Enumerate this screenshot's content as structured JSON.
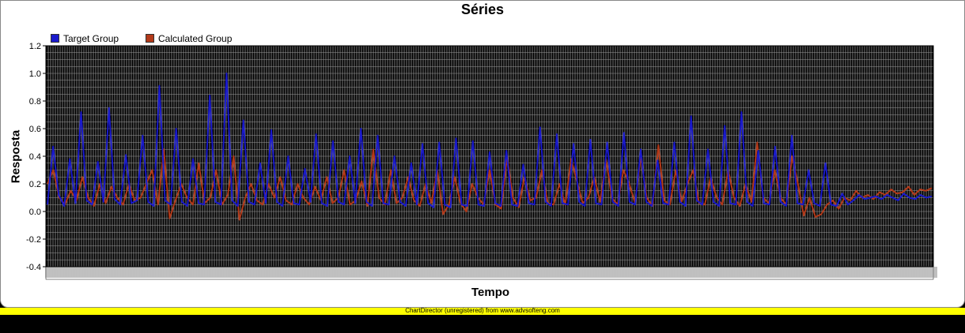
{
  "chart_data": {
    "type": "line",
    "title": "Séries",
    "xlabel": "Tempo",
    "ylabel": "Resposta",
    "ylim": [
      -0.4,
      1.2
    ],
    "yticks": [
      "1.2",
      "1.0",
      "0.8",
      "0.6",
      "0.4",
      "0.2",
      "0.0",
      "-0.2",
      "-0.4"
    ],
    "legend_placement": "top-left",
    "grid": true,
    "series": [
      {
        "name": "Target Group",
        "color": "#1a1acc",
        "values": [
          0.05,
          0.47,
          0.12,
          0.04,
          0.38,
          0.06,
          0.72,
          0.08,
          0.05,
          0.36,
          0.07,
          0.75,
          0.09,
          0.05,
          0.41,
          0.06,
          0.08,
          0.55,
          0.07,
          0.04,
          0.91,
          0.08,
          0.05,
          0.6,
          0.07,
          0.04,
          0.38,
          0.06,
          0.05,
          0.84,
          0.07,
          0.05,
          1.0,
          0.08,
          0.04,
          0.66,
          0.07,
          0.05,
          0.35,
          0.06,
          0.59,
          0.07,
          0.04,
          0.4,
          0.06,
          0.05,
          0.31,
          0.07,
          0.56,
          0.06,
          0.04,
          0.51,
          0.07,
          0.05,
          0.4,
          0.06,
          0.6,
          0.07,
          0.04,
          0.55,
          0.06,
          0.05,
          0.4,
          0.07,
          0.04,
          0.35,
          0.05,
          0.49,
          0.06,
          0.03,
          0.5,
          0.05,
          0.03,
          0.53,
          0.05,
          0.04,
          0.51,
          0.05,
          0.04,
          0.43,
          0.06,
          0.04,
          0.44,
          0.05,
          0.04,
          0.34,
          0.06,
          0.05,
          0.61,
          0.07,
          0.04,
          0.56,
          0.06,
          0.05,
          0.49,
          0.07,
          0.04,
          0.52,
          0.06,
          0.05,
          0.5,
          0.07,
          0.04,
          0.57,
          0.07,
          0.05,
          0.45,
          0.07,
          0.04,
          0.37,
          0.06,
          0.05,
          0.5,
          0.07,
          0.04,
          0.69,
          0.08,
          0.05,
          0.45,
          0.07,
          0.04,
          0.62,
          0.06,
          0.05,
          0.72,
          0.07,
          0.04,
          0.44,
          0.06,
          0.05,
          0.47,
          0.07,
          0.04,
          0.55,
          0.06,
          0.05,
          0.3,
          0.06,
          0.04,
          0.35,
          0.05,
          0.04,
          0.13,
          0.05,
          0.08,
          0.12,
          0.09,
          0.1,
          0.11,
          0.09,
          0.12,
          0.1,
          0.08,
          0.13,
          0.1,
          0.09,
          0.12,
          0.1,
          0.11
        ]
      },
      {
        "name": "Calculated Group",
        "color": "#b33a1a",
        "values": [
          0.2,
          0.3,
          0.1,
          0.05,
          0.15,
          0.08,
          0.25,
          0.1,
          0.04,
          0.2,
          0.06,
          0.18,
          0.1,
          0.05,
          0.2,
          0.08,
          0.1,
          0.2,
          0.3,
          0.05,
          0.45,
          -0.05,
          0.08,
          0.2,
          0.1,
          0.05,
          0.35,
          0.06,
          0.1,
          0.3,
          0.05,
          0.12,
          0.4,
          -0.06,
          0.1,
          0.2,
          0.08,
          0.05,
          0.2,
          0.1,
          0.25,
          0.08,
          0.05,
          0.2,
          0.1,
          0.05,
          0.18,
          0.08,
          0.25,
          0.06,
          0.1,
          0.3,
          0.05,
          0.08,
          0.22,
          0.04,
          0.45,
          0.1,
          0.05,
          0.3,
          0.06,
          0.1,
          0.25,
          0.08,
          0.04,
          0.2,
          0.06,
          0.3,
          -0.02,
          0.05,
          0.25,
          0.06,
          0.0,
          0.2,
          0.1,
          0.05,
          0.3,
          0.05,
          0.02,
          0.4,
          0.1,
          0.03,
          0.25,
          0.08,
          0.1,
          0.3,
          0.06,
          0.05,
          0.2,
          0.05,
          0.38,
          0.22,
          0.06,
          0.1,
          0.25,
          0.07,
          0.38,
          0.1,
          0.05,
          0.3,
          0.2,
          0.06,
          0.4,
          0.1,
          0.04,
          0.48,
          0.08,
          0.05,
          0.3,
          0.07,
          0.2,
          0.3,
          0.06,
          0.05,
          0.25,
          0.1,
          0.05,
          0.3,
          0.1,
          0.04,
          0.2,
          0.07,
          0.5,
          0.1,
          0.06,
          0.3,
          0.1,
          0.05,
          0.4,
          0.2,
          -0.03,
          0.1,
          -0.04,
          -0.02,
          0.05,
          0.08,
          0.02,
          0.1,
          0.08,
          0.15,
          0.1,
          0.12,
          0.09,
          0.14,
          0.12,
          0.16,
          0.13,
          0.14,
          0.18,
          0.12,
          0.16,
          0.15,
          0.17
        ]
      }
    ]
  },
  "footer": {
    "text": "ChartDirector (unregistered) from www.advsofteng.com"
  }
}
